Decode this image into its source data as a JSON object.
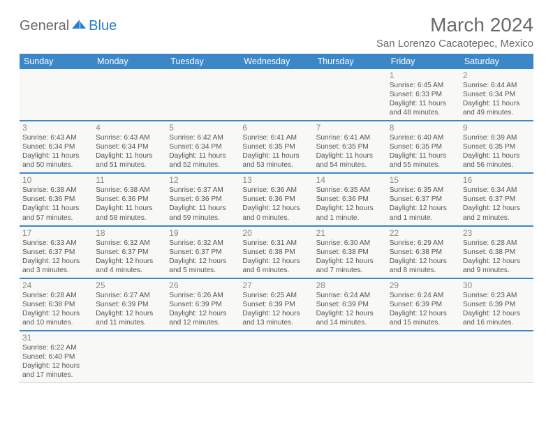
{
  "header": {
    "logo_general": "General",
    "logo_blue": "Blue",
    "month_title": "March 2024",
    "location": "San Lorenzo Cacaotepec, Mexico"
  },
  "colors": {
    "header_bg": "#3b87c8",
    "header_text": "#ffffff",
    "row_sep": "#3b87c8",
    "cell_border": "#d6d6d6",
    "cell_bg": "#f8f8f6",
    "text": "#555555",
    "daynum": "#888888",
    "title": "#6a6a6a",
    "logo_blue": "#2a7ec6"
  },
  "weekdays": [
    "Sunday",
    "Monday",
    "Tuesday",
    "Wednesday",
    "Thursday",
    "Friday",
    "Saturday"
  ],
  "weeks": [
    [
      null,
      null,
      null,
      null,
      null,
      {
        "n": "1",
        "sr": "Sunrise: 6:45 AM",
        "ss": "Sunset: 6:33 PM",
        "d1": "Daylight: 11 hours",
        "d2": "and 48 minutes."
      },
      {
        "n": "2",
        "sr": "Sunrise: 6:44 AM",
        "ss": "Sunset: 6:34 PM",
        "d1": "Daylight: 11 hours",
        "d2": "and 49 minutes."
      }
    ],
    [
      {
        "n": "3",
        "sr": "Sunrise: 6:43 AM",
        "ss": "Sunset: 6:34 PM",
        "d1": "Daylight: 11 hours",
        "d2": "and 50 minutes."
      },
      {
        "n": "4",
        "sr": "Sunrise: 6:43 AM",
        "ss": "Sunset: 6:34 PM",
        "d1": "Daylight: 11 hours",
        "d2": "and 51 minutes."
      },
      {
        "n": "5",
        "sr": "Sunrise: 6:42 AM",
        "ss": "Sunset: 6:34 PM",
        "d1": "Daylight: 11 hours",
        "d2": "and 52 minutes."
      },
      {
        "n": "6",
        "sr": "Sunrise: 6:41 AM",
        "ss": "Sunset: 6:35 PM",
        "d1": "Daylight: 11 hours",
        "d2": "and 53 minutes."
      },
      {
        "n": "7",
        "sr": "Sunrise: 6:41 AM",
        "ss": "Sunset: 6:35 PM",
        "d1": "Daylight: 11 hours",
        "d2": "and 54 minutes."
      },
      {
        "n": "8",
        "sr": "Sunrise: 6:40 AM",
        "ss": "Sunset: 6:35 PM",
        "d1": "Daylight: 11 hours",
        "d2": "and 55 minutes."
      },
      {
        "n": "9",
        "sr": "Sunrise: 6:39 AM",
        "ss": "Sunset: 6:35 PM",
        "d1": "Daylight: 11 hours",
        "d2": "and 56 minutes."
      }
    ],
    [
      {
        "n": "10",
        "sr": "Sunrise: 6:38 AM",
        "ss": "Sunset: 6:36 PM",
        "d1": "Daylight: 11 hours",
        "d2": "and 57 minutes."
      },
      {
        "n": "11",
        "sr": "Sunrise: 6:38 AM",
        "ss": "Sunset: 6:36 PM",
        "d1": "Daylight: 11 hours",
        "d2": "and 58 minutes."
      },
      {
        "n": "12",
        "sr": "Sunrise: 6:37 AM",
        "ss": "Sunset: 6:36 PM",
        "d1": "Daylight: 11 hours",
        "d2": "and 59 minutes."
      },
      {
        "n": "13",
        "sr": "Sunrise: 6:36 AM",
        "ss": "Sunset: 6:36 PM",
        "d1": "Daylight: 12 hours",
        "d2": "and 0 minutes."
      },
      {
        "n": "14",
        "sr": "Sunrise: 6:35 AM",
        "ss": "Sunset: 6:36 PM",
        "d1": "Daylight: 12 hours",
        "d2": "and 1 minute."
      },
      {
        "n": "15",
        "sr": "Sunrise: 6:35 AM",
        "ss": "Sunset: 6:37 PM",
        "d1": "Daylight: 12 hours",
        "d2": "and 1 minute."
      },
      {
        "n": "16",
        "sr": "Sunrise: 6:34 AM",
        "ss": "Sunset: 6:37 PM",
        "d1": "Daylight: 12 hours",
        "d2": "and 2 minutes."
      }
    ],
    [
      {
        "n": "17",
        "sr": "Sunrise: 6:33 AM",
        "ss": "Sunset: 6:37 PM",
        "d1": "Daylight: 12 hours",
        "d2": "and 3 minutes."
      },
      {
        "n": "18",
        "sr": "Sunrise: 6:32 AM",
        "ss": "Sunset: 6:37 PM",
        "d1": "Daylight: 12 hours",
        "d2": "and 4 minutes."
      },
      {
        "n": "19",
        "sr": "Sunrise: 6:32 AM",
        "ss": "Sunset: 6:37 PM",
        "d1": "Daylight: 12 hours",
        "d2": "and 5 minutes."
      },
      {
        "n": "20",
        "sr": "Sunrise: 6:31 AM",
        "ss": "Sunset: 6:38 PM",
        "d1": "Daylight: 12 hours",
        "d2": "and 6 minutes."
      },
      {
        "n": "21",
        "sr": "Sunrise: 6:30 AM",
        "ss": "Sunset: 6:38 PM",
        "d1": "Daylight: 12 hours",
        "d2": "and 7 minutes."
      },
      {
        "n": "22",
        "sr": "Sunrise: 6:29 AM",
        "ss": "Sunset: 6:38 PM",
        "d1": "Daylight: 12 hours",
        "d2": "and 8 minutes."
      },
      {
        "n": "23",
        "sr": "Sunrise: 6:28 AM",
        "ss": "Sunset: 6:38 PM",
        "d1": "Daylight: 12 hours",
        "d2": "and 9 minutes."
      }
    ],
    [
      {
        "n": "24",
        "sr": "Sunrise: 6:28 AM",
        "ss": "Sunset: 6:38 PM",
        "d1": "Daylight: 12 hours",
        "d2": "and 10 minutes."
      },
      {
        "n": "25",
        "sr": "Sunrise: 6:27 AM",
        "ss": "Sunset: 6:39 PM",
        "d1": "Daylight: 12 hours",
        "d2": "and 11 minutes."
      },
      {
        "n": "26",
        "sr": "Sunrise: 6:26 AM",
        "ss": "Sunset: 6:39 PM",
        "d1": "Daylight: 12 hours",
        "d2": "and 12 minutes."
      },
      {
        "n": "27",
        "sr": "Sunrise: 6:25 AM",
        "ss": "Sunset: 6:39 PM",
        "d1": "Daylight: 12 hours",
        "d2": "and 13 minutes."
      },
      {
        "n": "28",
        "sr": "Sunrise: 6:24 AM",
        "ss": "Sunset: 6:39 PM",
        "d1": "Daylight: 12 hours",
        "d2": "and 14 minutes."
      },
      {
        "n": "29",
        "sr": "Sunrise: 6:24 AM",
        "ss": "Sunset: 6:39 PM",
        "d1": "Daylight: 12 hours",
        "d2": "and 15 minutes."
      },
      {
        "n": "30",
        "sr": "Sunrise: 6:23 AM",
        "ss": "Sunset: 6:39 PM",
        "d1": "Daylight: 12 hours",
        "d2": "and 16 minutes."
      }
    ],
    [
      {
        "n": "31",
        "sr": "Sunrise: 6:22 AM",
        "ss": "Sunset: 6:40 PM",
        "d1": "Daylight: 12 hours",
        "d2": "and 17 minutes."
      },
      null,
      null,
      null,
      null,
      null,
      null
    ]
  ]
}
